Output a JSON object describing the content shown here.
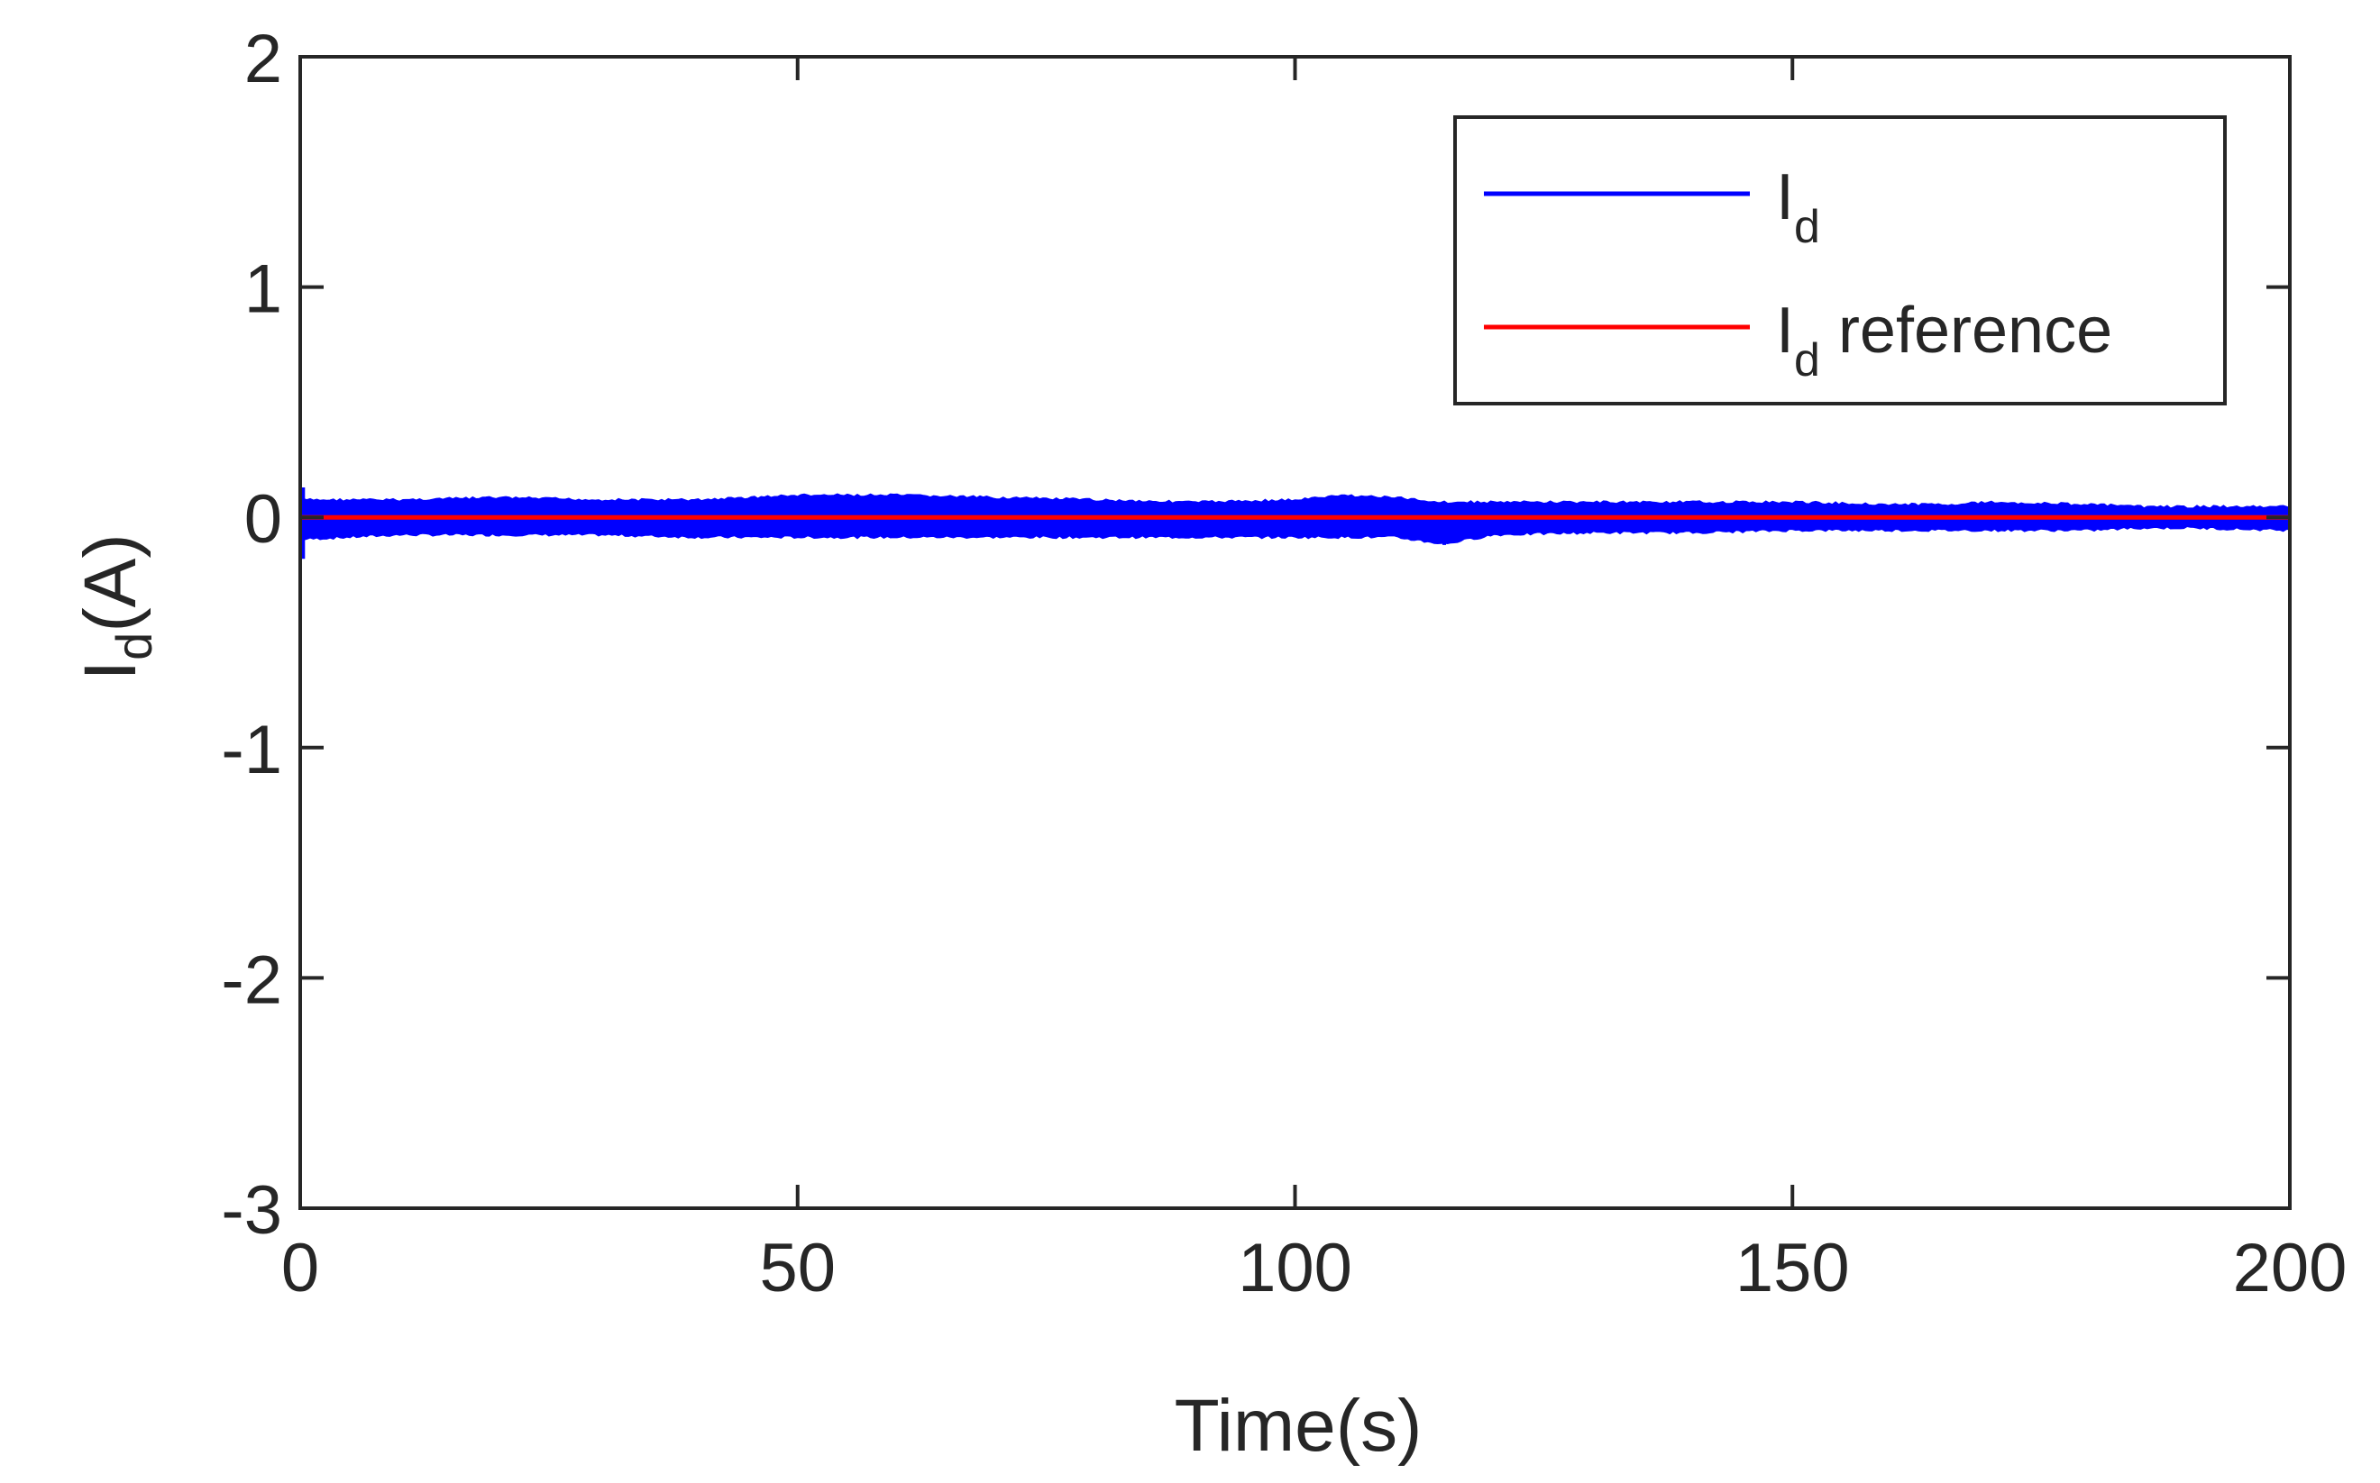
{
  "chart_data": {
    "type": "line",
    "xlabel": "Time(s)",
    "ylabel": {
      "base": "I",
      "sub": "d",
      "suffix": "(A)"
    },
    "xlim": [
      0,
      200
    ],
    "ylim": [
      -3,
      2
    ],
    "xticks": [
      0,
      50,
      100,
      150,
      200
    ],
    "yticks": [
      -3,
      -2,
      -1,
      0,
      1,
      2
    ],
    "grid": false,
    "legend_position": "top-right",
    "series": [
      {
        "name": "I_d",
        "legend": {
          "base": "I",
          "sub": "d",
          "suffix": ""
        },
        "color": "#0000ff",
        "style": "noisy band around the reference",
        "x": [
          0,
          10,
          20,
          30,
          40,
          50,
          60,
          70,
          80,
          90,
          100,
          105,
          110,
          115,
          120,
          130,
          140,
          150,
          160,
          165,
          170,
          180,
          185,
          190,
          200
        ],
        "y_upper": [
          0.08,
          0.08,
          0.09,
          0.08,
          0.08,
          0.1,
          0.1,
          0.09,
          0.08,
          0.07,
          0.08,
          0.1,
          0.09,
          0.07,
          0.07,
          0.07,
          0.07,
          0.07,
          0.06,
          0.06,
          0.07,
          0.06,
          0.05,
          0.05,
          0.05
        ],
        "y_lower": [
          -0.1,
          -0.08,
          -0.08,
          -0.08,
          -0.09,
          -0.09,
          -0.09,
          -0.09,
          -0.09,
          -0.09,
          -0.09,
          -0.09,
          -0.09,
          -0.12,
          -0.08,
          -0.07,
          -0.07,
          -0.06,
          -0.06,
          -0.06,
          -0.06,
          -0.06,
          -0.05,
          -0.05,
          -0.06
        ]
      },
      {
        "name": "I_d reference",
        "legend": {
          "base": "I",
          "sub": "d",
          "suffix": " reference"
        },
        "color": "#ff0000",
        "x": [
          0,
          200
        ],
        "y": [
          0,
          0
        ]
      }
    ]
  }
}
